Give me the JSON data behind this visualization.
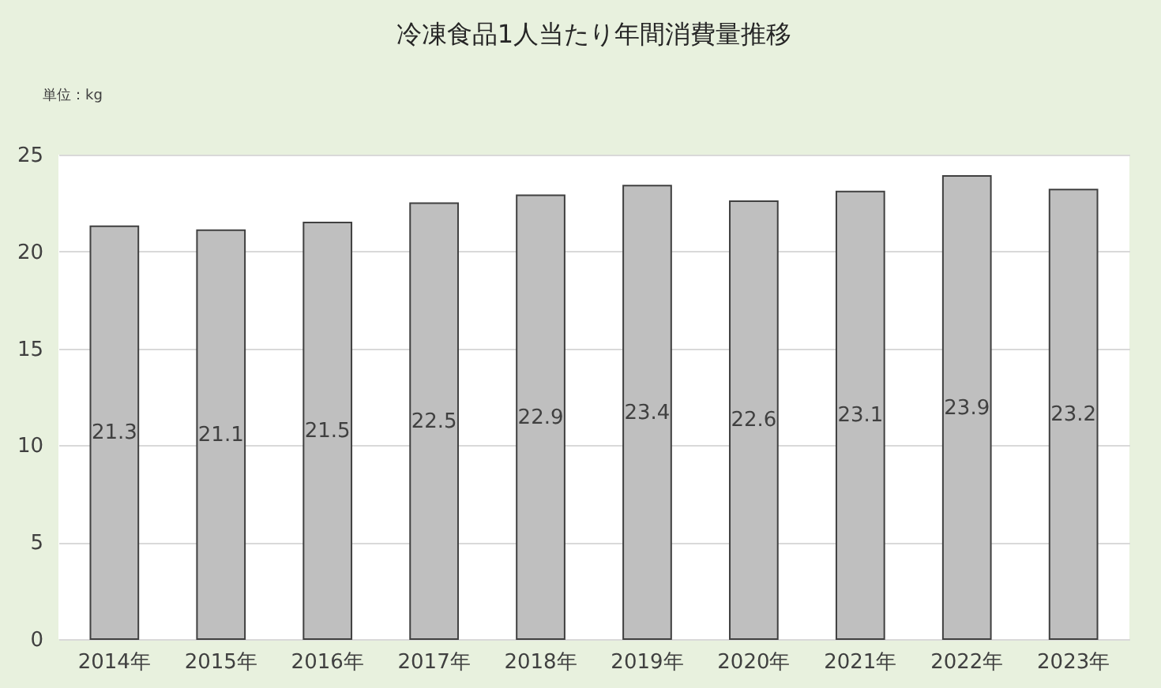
{
  "chart_data": {
    "type": "bar",
    "title": "冷凍食品1人当たり年間消費量推移",
    "annotations": [
      "単位：kg"
    ],
    "categories": [
      "2014年",
      "2015年",
      "2016年",
      "2017年",
      "2018年",
      "2019年",
      "2020年",
      "2021年",
      "2022年",
      "2023年"
    ],
    "values": [
      21.3,
      21.1,
      21.5,
      22.5,
      22.9,
      23.4,
      22.6,
      23.1,
      23.9,
      23.2
    ],
    "color": "#bfbfbf",
    "ylim": [
      0,
      25
    ],
    "yticks": [
      0,
      5,
      10,
      15,
      20,
      25
    ],
    "grid": "y",
    "data_labels": true
  }
}
